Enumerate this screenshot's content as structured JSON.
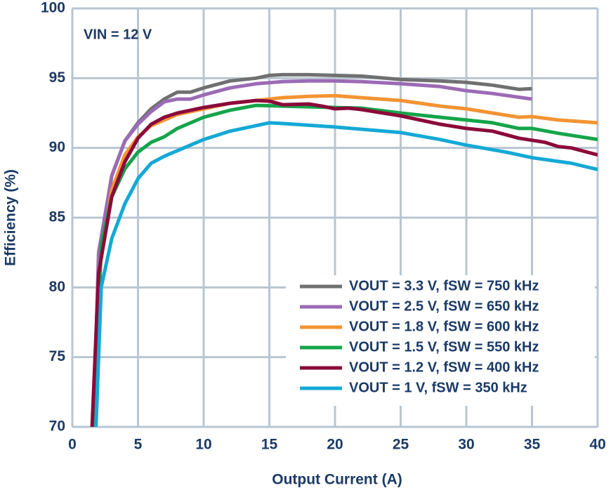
{
  "chart_data": {
    "type": "line",
    "x_label": "Output Current (A)",
    "y_label": "Efficiency (%)",
    "annotation": "VIN = 12 V",
    "xlim": [
      0,
      40
    ],
    "xticks": [
      0,
      5,
      10,
      15,
      20,
      25,
      30,
      35,
      40
    ],
    "ylim": [
      70,
      100
    ],
    "yticks": [
      70,
      75,
      80,
      85,
      90,
      95,
      100
    ],
    "grid": true,
    "legend": "lower right",
    "series": [
      {
        "name": "VOUT = 3.3 V, fSW = 750 kHz",
        "color": "#707070",
        "x": [
          1.6,
          2,
          3,
          4,
          5,
          6,
          7,
          8,
          9,
          10,
          12,
          14,
          15,
          16,
          18,
          20,
          22,
          25,
          28,
          30,
          32,
          34,
          35
        ],
        "values": [
          70,
          82,
          88,
          90.5,
          91.8,
          92.8,
          93.5,
          94,
          94,
          94.3,
          94.8,
          95,
          95.2,
          95.25,
          95.25,
          95.2,
          95.15,
          94.9,
          94.8,
          94.7,
          94.5,
          94.2,
          94.25
        ]
      },
      {
        "name": "VOUT = 2.5 V, fSW = 650 kHz",
        "color": "#9b6bb5",
        "x": [
          1.6,
          2,
          3,
          4,
          5,
          6,
          7,
          8,
          9,
          10,
          12,
          14,
          16,
          18,
          20,
          22,
          25,
          28,
          30,
          32,
          35
        ],
        "values": [
          70,
          82.5,
          88,
          90.5,
          91.7,
          92.6,
          93.3,
          93.5,
          93.5,
          93.8,
          94.3,
          94.6,
          94.75,
          94.8,
          94.8,
          94.75,
          94.6,
          94.4,
          94.1,
          93.9,
          93.5
        ]
      },
      {
        "name": "VOUT = 1.8 V, fSW = 600 kHz",
        "color": "#f39433",
        "x": [
          1.6,
          2,
          3,
          4,
          5,
          6,
          7,
          8,
          10,
          12,
          14,
          16,
          18,
          20,
          22,
          25,
          28,
          30,
          32,
          34,
          35,
          37,
          40
        ],
        "values": [
          70,
          81,
          87,
          89.5,
          90.8,
          91.6,
          92,
          92.4,
          92.8,
          93.2,
          93.4,
          93.6,
          93.7,
          93.75,
          93.6,
          93.4,
          93,
          92.8,
          92.5,
          92.2,
          92.25,
          92,
          91.8
        ]
      },
      {
        "name": "VOUT = 1.5 V, fSW = 550 kHz",
        "color": "#15a44a",
        "x": [
          1.7,
          2.2,
          3,
          4,
          5,
          6,
          7,
          8,
          10,
          12,
          14,
          16,
          18,
          20,
          22,
          25,
          28,
          30,
          32,
          34,
          35,
          37,
          40
        ],
        "values": [
          70,
          83,
          86.5,
          88.5,
          89.7,
          90.4,
          90.8,
          91.4,
          92.2,
          92.7,
          93.05,
          93,
          92.95,
          92.9,
          92.85,
          92.5,
          92.2,
          92,
          91.8,
          91.4,
          91.4,
          91.05,
          90.6
        ]
      },
      {
        "name": "VOUT = 1.2 V, fSW = 400 kHz",
        "color": "#8b0a3a",
        "x": [
          1.5,
          2,
          3,
          4,
          5,
          6,
          7,
          8,
          10,
          12,
          14,
          15,
          16,
          18,
          19,
          20,
          21,
          22,
          25,
          28,
          30,
          32,
          34,
          36,
          37,
          38,
          40
        ],
        "values": [
          70,
          81,
          86.5,
          89,
          90.7,
          91.7,
          92.2,
          92.5,
          92.9,
          93.2,
          93.4,
          93.35,
          93.1,
          93.15,
          93,
          92.8,
          92.85,
          92.75,
          92.3,
          91.7,
          91.4,
          91.2,
          90.7,
          90.4,
          90.1,
          90,
          89.5
        ]
      },
      {
        "name": "VOUT = 1 V, fSW = 350 kHz",
        "color": "#14a9d6",
        "x": [
          1.8,
          2.2,
          3,
          4,
          5,
          6,
          7,
          8,
          10,
          12,
          14,
          15,
          16,
          20,
          25,
          28,
          30,
          33,
          35,
          38,
          40
        ],
        "values": [
          70,
          80,
          83.5,
          86,
          87.8,
          88.9,
          89.4,
          89.8,
          90.6,
          91.2,
          91.6,
          91.8,
          91.75,
          91.5,
          91.1,
          90.6,
          90.2,
          89.7,
          89.3,
          88.9,
          88.45
        ]
      }
    ]
  }
}
